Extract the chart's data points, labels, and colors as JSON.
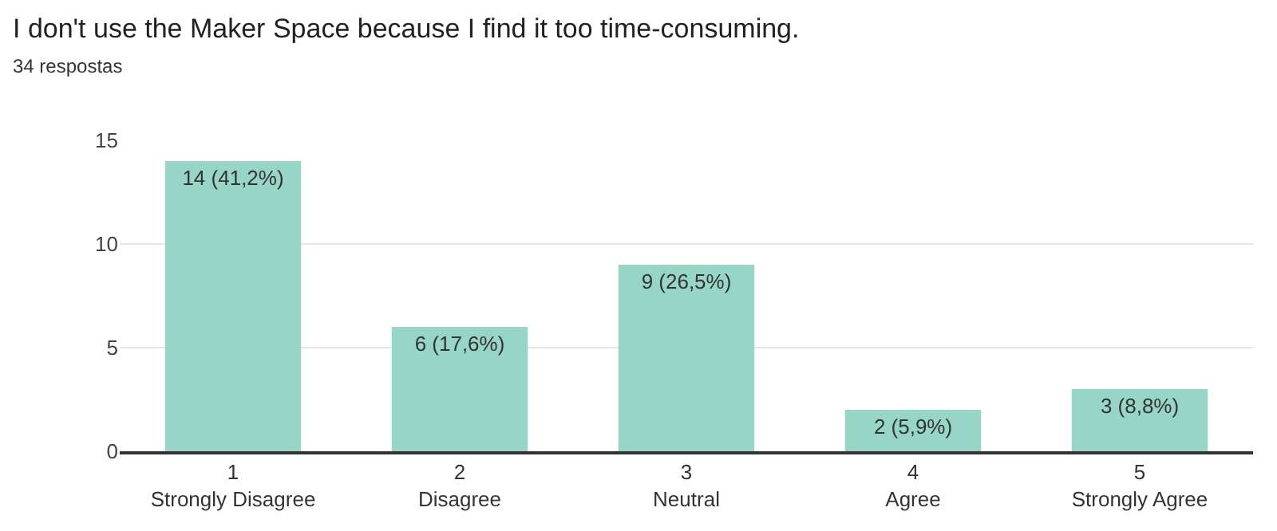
{
  "chart_data": {
    "type": "bar",
    "title": "I don't use the Maker Space because I find it too time-consuming.",
    "subtitle": "34 respostas",
    "categories": [
      "1\nStrongly Disagree",
      "2\nDisagree",
      "3\nNeutral",
      "4\nAgree",
      "5\nStrongly Agree"
    ],
    "values": [
      14,
      6,
      9,
      2,
      3
    ],
    "value_labels": [
      "14 (41,2%)",
      "6 (17,6%)",
      "9 (26,5%)",
      "2 (5,9%)",
      "3 (8,8%)"
    ],
    "color": "#97d6c7",
    "ylim": [
      0,
      15
    ],
    "yticks": [
      0,
      5,
      10,
      15
    ],
    "grid": "y"
  }
}
